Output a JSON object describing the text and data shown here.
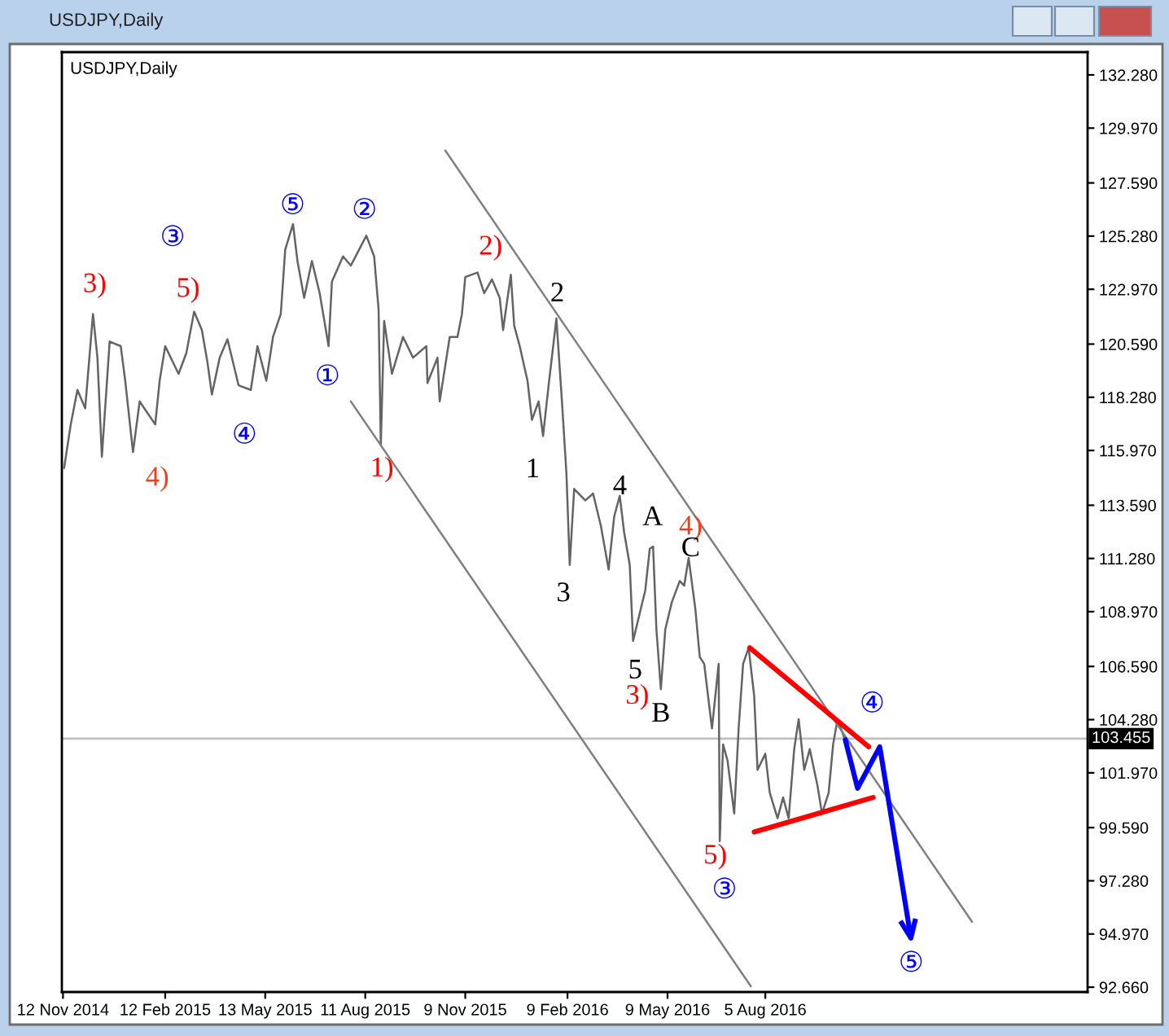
{
  "chart_data": {
    "type": "line",
    "title": "USDJPY,Daily",
    "subtitle": "USDJPY,Daily",
    "xlim": [
      "2014-11-11",
      "2017-05-22"
    ],
    "xticks": [
      {
        "value": "2014-11-12",
        "label": "12 Nov 2014"
      },
      {
        "value": "2015-02-12",
        "label": "12 Feb 2015"
      },
      {
        "value": "2015-05-13",
        "label": "13 May 2015"
      },
      {
        "value": "2015-08-11",
        "label": "11 Aug 2015"
      },
      {
        "value": "2015-11-09",
        "label": "9 Nov 2015"
      },
      {
        "value": "2016-02-09",
        "label": "9 Feb 2016"
      },
      {
        "value": "2016-05-09",
        "label": "9 May 2016"
      },
      {
        "value": "2016-08-05",
        "label": "5 Aug 2016"
      }
    ],
    "ylim": [
      92.45,
      133.27
    ],
    "yticks": [
      {
        "value": 92.66,
        "label": "92.660"
      },
      {
        "value": 94.97,
        "label": "94.970"
      },
      {
        "value": 97.28,
        "label": "97.280"
      },
      {
        "value": 99.59,
        "label": "99.590"
      },
      {
        "value": 101.97,
        "label": "101.970"
      },
      {
        "value": 104.28,
        "label": "104.280"
      },
      {
        "value": 106.59,
        "label": "106.590"
      },
      {
        "value": 108.97,
        "label": "108.970"
      },
      {
        "value": 111.28,
        "label": "111.280"
      },
      {
        "value": 113.59,
        "label": "113.590"
      },
      {
        "value": 115.97,
        "label": "115.970"
      },
      {
        "value": 118.28,
        "label": "118.280"
      },
      {
        "value": 120.59,
        "label": "120.590"
      },
      {
        "value": 122.97,
        "label": "122.970"
      },
      {
        "value": 125.28,
        "label": "125.280"
      },
      {
        "value": 127.59,
        "label": "127.590"
      },
      {
        "value": 129.97,
        "label": "129.970"
      },
      {
        "value": 132.28,
        "label": "132.280"
      }
    ],
    "series": [
      {
        "color": "#646464",
        "x": [
          "2014-11-13",
          "2014-11-19",
          "2014-11-25",
          "2014-12-02",
          "2014-12-09",
          "2014-12-13",
          "2014-12-17",
          "2014-12-24",
          "2015-01-03",
          "2015-01-07",
          "2015-01-14",
          "2015-01-20",
          "2015-01-27",
          "2015-02-03",
          "2015-02-07",
          "2015-02-12",
          "2015-02-24",
          "2015-03-03",
          "2015-03-10",
          "2015-03-17",
          "2015-03-22",
          "2015-03-26",
          "2015-04-02",
          "2015-04-09",
          "2015-04-19",
          "2015-04-30",
          "2015-05-06",
          "2015-05-14",
          "2015-05-20",
          "2015-05-27",
          "2015-05-31",
          "2015-06-07",
          "2015-06-11",
          "2015-06-17",
          "2015-06-24",
          "2015-07-01",
          "2015-07-09",
          "2015-07-12",
          "2015-07-22",
          "2015-07-29",
          "2015-08-12",
          "2015-08-19",
          "2015-08-23",
          "2015-08-25",
          "2015-08-28",
          "2015-09-04",
          "2015-09-14",
          "2015-09-23",
          "2015-10-05",
          "2015-10-06",
          "2015-10-15",
          "2015-10-17",
          "2015-10-26",
          "2015-11-02",
          "2015-11-06",
          "2015-11-09",
          "2015-11-20",
          "2015-11-26",
          "2015-12-03",
          "2015-12-10",
          "2015-12-13",
          "2015-12-20",
          "2015-12-23",
          "2015-12-28",
          "2016-01-04",
          "2016-01-08",
          "2016-01-14",
          "2016-01-18",
          "2016-01-23",
          "2016-01-30",
          "2016-02-04",
          "2016-02-08",
          "2016-02-11",
          "2016-02-15",
          "2016-02-25",
          "2016-03-03",
          "2016-03-10",
          "2016-03-17",
          "2016-03-22",
          "2016-03-27",
          "2016-03-31",
          "2016-04-05",
          "2016-04-08",
          "2016-04-15",
          "2016-04-19",
          "2016-04-23",
          "2016-04-26",
          "2016-04-29",
          "2016-05-03",
          "2016-05-07",
          "2016-05-13",
          "2016-05-20",
          "2016-05-24",
          "2016-05-28",
          "2016-06-03",
          "2016-06-07",
          "2016-06-11",
          "2016-06-18",
          "2016-06-24",
          "2016-06-25",
          "2016-06-28",
          "2016-07-02",
          "2016-07-08",
          "2016-07-12",
          "2016-07-16",
          "2016-07-21",
          "2016-07-26",
          "2016-07-29",
          "2016-08-05",
          "2016-08-09",
          "2016-08-16",
          "2016-08-21",
          "2016-08-26",
          "2016-08-31",
          "2016-09-04",
          "2016-09-09",
          "2016-09-14",
          "2016-09-21",
          "2016-09-25",
          "2016-10-01",
          "2016-10-05",
          "2016-10-09",
          "2016-10-15"
        ],
        "values": [
          115.2,
          117.1,
          118.6,
          117.8,
          121.9,
          120.0,
          115.7,
          120.7,
          120.5,
          119.0,
          115.9,
          118.1,
          117.6,
          117.1,
          119.0,
          120.5,
          119.3,
          120.2,
          122.0,
          121.2,
          119.8,
          118.4,
          120.0,
          120.8,
          118.8,
          118.6,
          120.5,
          119.0,
          120.9,
          121.9,
          124.7,
          125.8,
          124.2,
          122.6,
          124.2,
          122.8,
          120.5,
          123.3,
          124.4,
          124.0,
          125.3,
          124.4,
          122.1,
          116.2,
          121.6,
          119.3,
          120.9,
          120.0,
          120.5,
          118.9,
          120.0,
          118.1,
          120.9,
          120.9,
          121.9,
          123.5,
          123.7,
          122.8,
          123.4,
          122.6,
          121.2,
          123.6,
          121.4,
          120.5,
          119.0,
          117.3,
          118.1,
          116.6,
          118.8,
          121.7,
          118.1,
          115.0,
          111.0,
          114.3,
          113.8,
          114.1,
          112.7,
          110.8,
          113.1,
          114.0,
          112.4,
          111.0,
          107.7,
          109.1,
          109.9,
          111.7,
          111.8,
          108.2,
          105.6,
          108.2,
          109.4,
          110.3,
          110.1,
          111.3,
          109.1,
          107.0,
          106.7,
          103.9,
          106.7,
          99.0,
          103.2,
          102.5,
          100.2,
          103.9,
          106.7,
          107.4,
          105.3,
          102.1,
          102.8,
          101.1,
          100.0,
          100.9,
          100.0,
          103.0,
          104.3,
          102.1,
          103.0,
          101.4,
          100.2,
          101.1,
          103.2,
          104.3,
          103.5
        ]
      },
      {
        "color": "#808080",
        "x": [
          "2015-10-22",
          "2017-02-07"
        ],
        "values": [
          129.0,
          95.5
        ]
      },
      {
        "color": "#808080",
        "x": [
          "2015-07-29",
          "2016-07-23"
        ],
        "values": [
          118.1,
          92.7
        ]
      },
      {
        "color": "#ff0000",
        "x": [
          "2016-07-22",
          "2016-11-06"
        ],
        "values": [
          107.4,
          103.1
        ]
      },
      {
        "color": "#ff0000",
        "x": [
          "2016-07-26",
          "2016-11-10"
        ],
        "values": [
          99.4,
          100.9
        ]
      },
      {
        "color": "#0000ff",
        "x": [
          "2016-10-16",
          "2016-10-27",
          "2016-11-16",
          "2016-12-14"
        ],
        "values": [
          103.4,
          101.3,
          103.1,
          94.8
        ]
      }
    ],
    "ref_lines": [
      {
        "axis": "y",
        "value": 103.455,
        "label": "103.455",
        "color": "#c0c0c0"
      }
    ],
    "annotations": [
      "③",
      "⑤",
      "②",
      "①",
      "④",
      "③",
      "④",
      "⑤",
      "3)",
      "5)",
      "4)",
      "1)",
      "2)",
      "4)",
      "3)",
      "5)",
      "2",
      "1",
      "4",
      "3",
      "A",
      "C",
      "5",
      "B"
    ]
  }
}
